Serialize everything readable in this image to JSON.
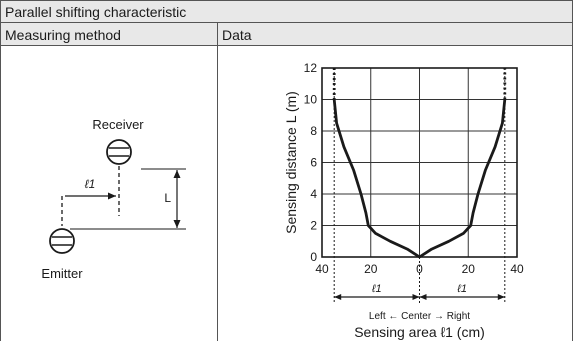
{
  "title": "Parallel shifting characteristic",
  "columns": {
    "method": "Measuring method",
    "data": "Data"
  },
  "method_diagram": {
    "receiver_label": "Receiver",
    "emitter_label": "Emitter",
    "shift_label": "ℓ1",
    "distance_label": "L"
  },
  "chart_data": {
    "type": "line",
    "ylabel": "Sensing distance L (m)",
    "xlabel": "Sensing area ℓ1 (cm)",
    "x_ticks": [
      "40",
      "20",
      "0",
      "20",
      "40"
    ],
    "y_ticks": [
      "0",
      "2",
      "4",
      "6",
      "8",
      "10",
      "12"
    ],
    "xlim": [
      -40,
      40
    ],
    "ylim": [
      0,
      12
    ],
    "grid": true,
    "direction_note": "Left ← Center → Right",
    "shift_marker_label": "ℓ1",
    "shift_marker_x": 35,
    "series": [
      {
        "values": [
          {
            "x": -35,
            "y": 12
          },
          {
            "x": -35,
            "y": 10
          },
          {
            "x": -34,
            "y": 8.5
          },
          {
            "x": -31,
            "y": 7
          },
          {
            "x": -27,
            "y": 5.5
          },
          {
            "x": -24,
            "y": 4
          },
          {
            "x": -22,
            "y": 2.8
          },
          {
            "x": -21,
            "y": 2
          },
          {
            "x": -18,
            "y": 1.5
          },
          {
            "x": -12,
            "y": 1
          },
          {
            "x": -5,
            "y": 0.5
          },
          {
            "x": 0,
            "y": 0
          },
          {
            "x": 5,
            "y": 0.5
          },
          {
            "x": 12,
            "y": 1
          },
          {
            "x": 18,
            "y": 1.5
          },
          {
            "x": 21,
            "y": 2
          },
          {
            "x": 22,
            "y": 2.8
          },
          {
            "x": 24,
            "y": 4
          },
          {
            "x": 27,
            "y": 5.5
          },
          {
            "x": 31,
            "y": 7
          },
          {
            "x": 34,
            "y": 8.5
          },
          {
            "x": 35,
            "y": 10
          },
          {
            "x": 35,
            "y": 12
          }
        ],
        "dotted_above_y": 10,
        "color": "#1a1a1a"
      }
    ]
  }
}
